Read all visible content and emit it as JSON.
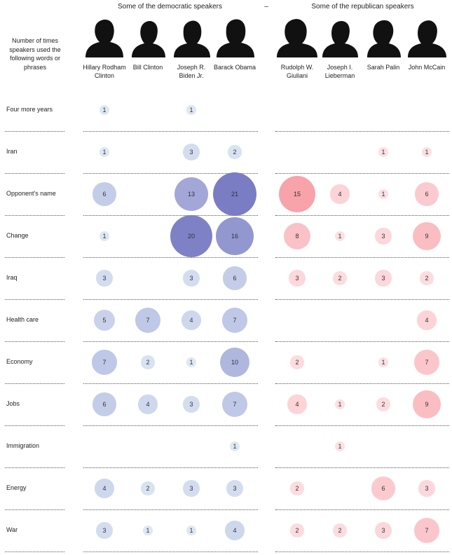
{
  "header": {
    "dem_title": "Some of the democratic speakers",
    "separator": "–",
    "rep_title": "Some of the republican speakers",
    "row_header": "Number of times speakers used the following words or phrases"
  },
  "speakers": [
    {
      "name": "Hillary Rodham Clinton",
      "party": "democratic"
    },
    {
      "name": "Bill Clinton",
      "party": "democratic"
    },
    {
      "name": "Joseph R. Biden Jr.",
      "party": "democratic"
    },
    {
      "name": "Barack Obama",
      "party": "democratic"
    },
    {
      "name": "Rudolph W. Giuliani",
      "party": "republican"
    },
    {
      "name": "Joseph I. Lieberman",
      "party": "republican"
    },
    {
      "name": "Sarah Palin",
      "party": "republican"
    },
    {
      "name": "John McCain",
      "party": "republican"
    }
  ],
  "colors": {
    "democratic_light": "#dde8f4",
    "democratic_dark": "#7a7cc4",
    "republican_light": "#fde0e4",
    "republican_dark": "#f5898f",
    "silhouette": "#111111",
    "separator": "#555555"
  },
  "chart_data": {
    "type": "bubble-matrix",
    "rows": [
      "Four more years",
      "Iran",
      "Opponent's name",
      "Change",
      "Iraq",
      "Health care",
      "Economy",
      "Jobs",
      "Immigration",
      "Energy",
      "War"
    ],
    "columns": [
      "Hillary Rodham Clinton",
      "Bill Clinton",
      "Joseph R. Biden Jr.",
      "Barack Obama",
      "Rudolph W. Giuliani",
      "Joseph I. Lieberman",
      "Sarah Palin",
      "John McCain"
    ],
    "values": [
      [
        1,
        null,
        1,
        null,
        null,
        null,
        null,
        null
      ],
      [
        1,
        null,
        3,
        2,
        null,
        null,
        1,
        1
      ],
      [
        6,
        null,
        13,
        21,
        15,
        4,
        1,
        6
      ],
      [
        1,
        null,
        20,
        16,
        8,
        1,
        3,
        9
      ],
      [
        3,
        null,
        3,
        6,
        3,
        2,
        3,
        2
      ],
      [
        5,
        7,
        4,
        7,
        null,
        null,
        null,
        4
      ],
      [
        7,
        2,
        1,
        10,
        2,
        null,
        1,
        7
      ],
      [
        6,
        4,
        3,
        7,
        4,
        1,
        2,
        9
      ],
      [
        null,
        null,
        null,
        1,
        null,
        1,
        null,
        null
      ],
      [
        4,
        2,
        3,
        3,
        2,
        null,
        6,
        3
      ],
      [
        3,
        1,
        1,
        4,
        2,
        2,
        3,
        7
      ]
    ],
    "max_value": 21
  }
}
